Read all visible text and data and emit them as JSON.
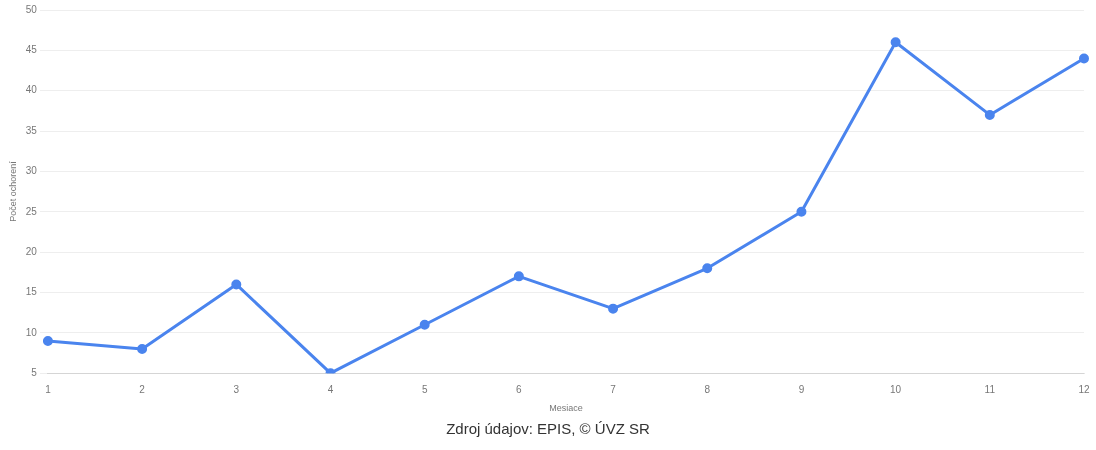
{
  "chart_data": {
    "type": "line",
    "xlabel": "Mesiace",
    "ylabel": "Počet ochorení",
    "categories": [
      "1",
      "2",
      "3",
      "4",
      "5",
      "6",
      "7",
      "8",
      "9",
      "10",
      "11",
      "12"
    ],
    "series": [
      {
        "color": "#4a84ee",
        "values": [
          9,
          8,
          16,
          5,
          11,
          17,
          13,
          18,
          25,
          46,
          37,
          44
        ]
      }
    ],
    "ylim": [
      5,
      50
    ],
    "yticks": [
      5,
      10,
      15,
      20,
      25,
      30,
      35,
      40,
      45,
      50
    ],
    "grid": "y",
    "legend": false,
    "marker": "circle",
    "line_style": "solid",
    "annotations": [
      "Zdroj údajov: EPIS, © ÚVZ SR"
    ]
  }
}
